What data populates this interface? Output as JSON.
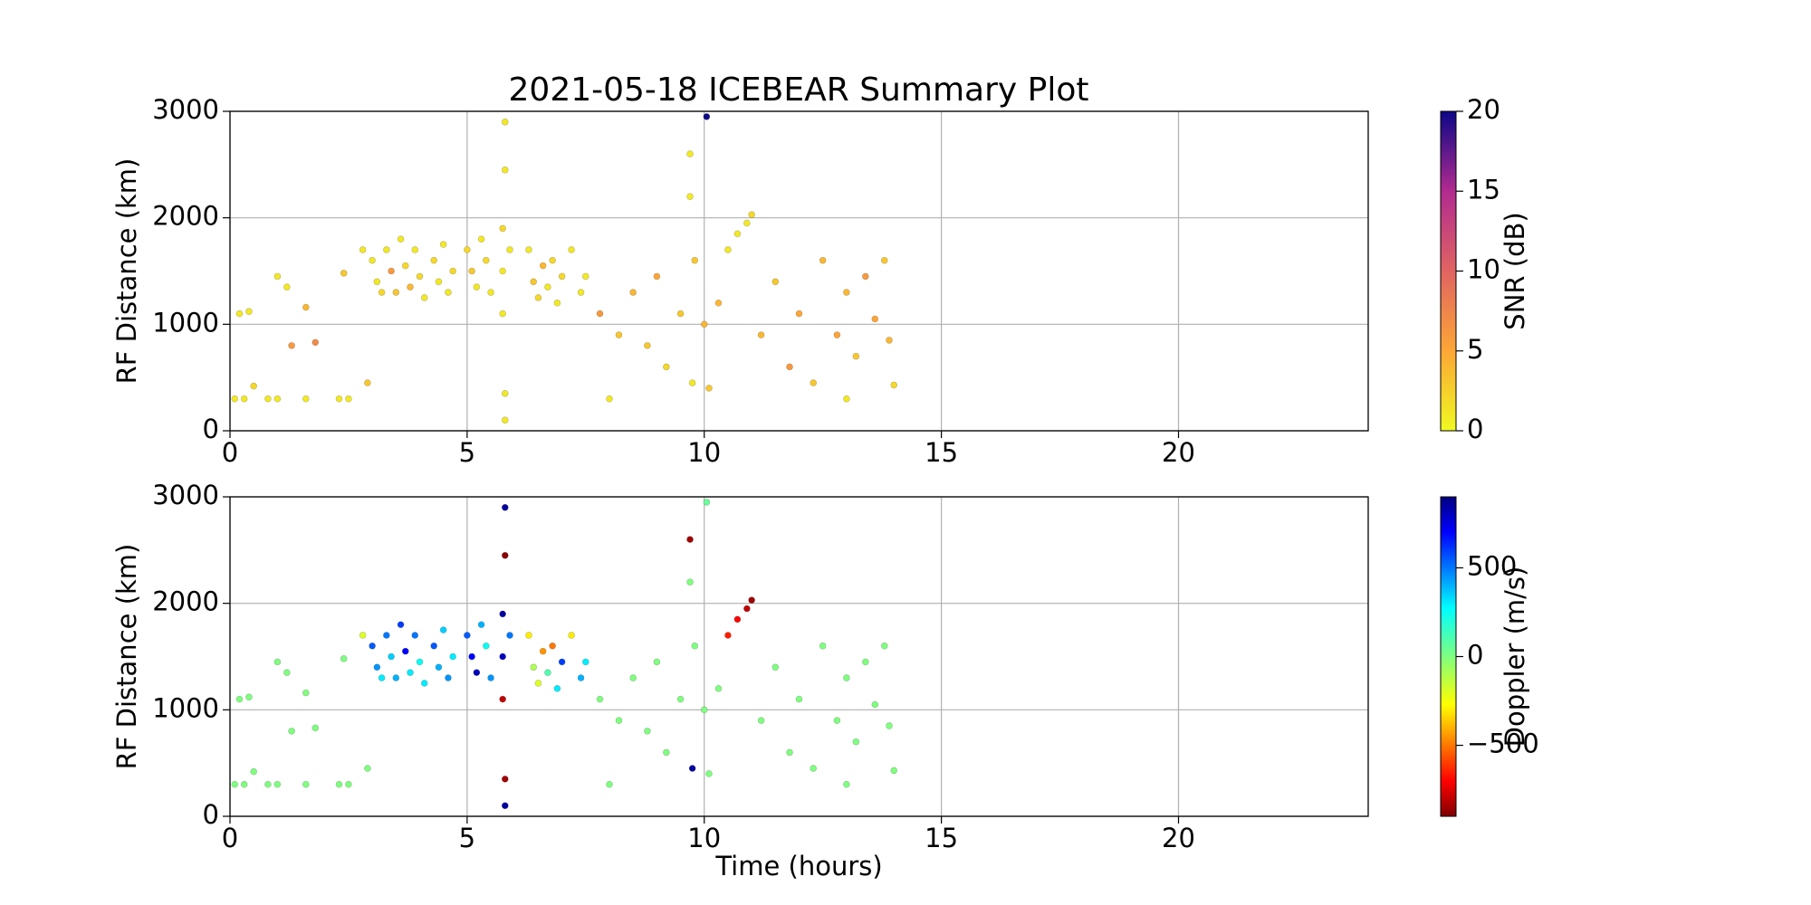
{
  "chart_data": [
    {
      "type": "scatter",
      "title": "2021-05-18 ICEBEAR Summary Plot",
      "ylabel": "RF Distance (km)",
      "xlim": [
        0,
        24
      ],
      "xticks": [
        0,
        5,
        10,
        15,
        20
      ],
      "ylim": [
        0,
        3000
      ],
      "yticks": [
        0,
        1000,
        2000,
        3000
      ],
      "grid": true,
      "colorbar_label": "SNR (dB)",
      "colormap": "plasma_r",
      "clim": [
        0,
        20
      ],
      "cticks": [
        0,
        5,
        10,
        15,
        20
      ],
      "x": [
        0.1,
        0.3,
        0.2,
        0.4,
        0.5,
        0.8,
        1.0,
        1.0,
        1.2,
        1.3,
        1.6,
        1.6,
        1.8,
        2.3,
        2.4,
        2.5,
        2.8,
        2.9,
        3.0,
        3.1,
        3.2,
        3.3,
        3.4,
        3.5,
        3.6,
        3.7,
        3.8,
        3.9,
        4.0,
        4.1,
        4.3,
        4.4,
        4.5,
        4.6,
        4.7,
        5.0,
        5.1,
        5.2,
        5.3,
        5.4,
        5.5,
        5.75,
        5.75,
        5.75,
        5.8,
        5.8,
        5.8,
        5.8,
        5.9,
        6.3,
        6.4,
        6.5,
        6.6,
        6.7,
        6.8,
        6.9,
        7.0,
        7.2,
        7.4,
        7.5,
        7.8,
        8.0,
        8.2,
        8.5,
        8.8,
        9.0,
        9.2,
        9.5,
        9.7,
        9.7,
        9.75,
        9.8,
        10.0,
        10.05,
        10.1,
        10.3,
        10.5,
        10.7,
        10.9,
        11.0,
        11.2,
        11.5,
        11.8,
        12.0,
        12.3,
        12.5,
        12.8,
        13.0,
        13.0,
        13.2,
        13.4,
        13.6,
        13.8,
        13.9,
        14.0
      ],
      "y": [
        300,
        300,
        1100,
        1120,
        420,
        300,
        300,
        1450,
        1350,
        800,
        300,
        1160,
        830,
        300,
        1480,
        300,
        1700,
        450,
        1600,
        1400,
        1300,
        1700,
        1500,
        1300,
        1800,
        1550,
        1350,
        1700,
        1450,
        1250,
        1600,
        1400,
        1750,
        1300,
        1500,
        1700,
        1500,
        1350,
        1800,
        1600,
        1300,
        1900,
        1500,
        1100,
        2900,
        2450,
        350,
        100,
        1700,
        1700,
        1400,
        1250,
        1550,
        1350,
        1600,
        1200,
        1450,
        1700,
        1300,
        1450,
        1100,
        300,
        900,
        1300,
        800,
        1450,
        600,
        1100,
        2600,
        2200,
        450,
        1600,
        1000,
        2950,
        400,
        1200,
        1700,
        1850,
        1950,
        2030,
        900,
        1400,
        600,
        1100,
        450,
        1600,
        900,
        1300,
        300,
        700,
        1450,
        1050,
        1600,
        850,
        430
      ],
      "c": [
        1,
        1,
        1,
        1,
        2,
        1,
        1,
        1,
        1,
        6,
        1,
        4,
        7,
        1,
        3,
        1,
        1,
        3,
        1,
        1,
        2,
        1,
        6,
        3,
        1,
        2,
        4,
        1,
        2,
        1,
        2,
        1,
        1,
        1,
        2,
        2,
        3,
        1,
        1,
        2,
        1,
        2,
        1,
        1,
        1,
        1,
        1,
        1,
        1,
        1,
        3,
        2,
        4,
        1,
        2,
        1,
        2,
        1,
        1,
        1,
        6,
        1,
        3,
        4,
        3,
        5,
        2,
        3,
        1,
        1,
        1,
        3,
        4,
        20,
        3,
        4,
        1,
        1,
        1,
        2,
        4,
        3,
        6,
        5,
        3,
        4,
        5,
        4,
        1,
        3,
        6,
        5,
        3,
        4,
        2
      ]
    },
    {
      "type": "scatter",
      "ylabel": "RF Distance (km)",
      "xlabel": "Time (hours)",
      "xlim": [
        0,
        24
      ],
      "xticks": [
        0,
        5,
        10,
        15,
        20
      ],
      "ylim": [
        0,
        3000
      ],
      "yticks": [
        0,
        1000,
        2000,
        3000
      ],
      "grid": true,
      "colorbar_label": "Doppler (m/s)",
      "colormap": "jet_r",
      "clim": [
        -900,
        900
      ],
      "cticks": [
        {
          "value": -500,
          "label": "−500"
        },
        0,
        500
      ],
      "x": [
        0.1,
        0.3,
        0.2,
        0.4,
        0.5,
        0.8,
        1.0,
        1.0,
        1.2,
        1.3,
        1.6,
        1.6,
        1.8,
        2.3,
        2.4,
        2.5,
        2.8,
        2.9,
        3.0,
        3.1,
        3.2,
        3.3,
        3.4,
        3.5,
        3.6,
        3.7,
        3.8,
        3.9,
        4.0,
        4.1,
        4.3,
        4.4,
        4.5,
        4.6,
        4.7,
        5.0,
        5.1,
        5.2,
        5.3,
        5.4,
        5.5,
        5.75,
        5.75,
        5.75,
        5.8,
        5.8,
        5.8,
        5.8,
        5.9,
        6.3,
        6.4,
        6.5,
        6.6,
        6.7,
        6.8,
        6.9,
        7.0,
        7.2,
        7.4,
        7.5,
        7.8,
        8.0,
        8.2,
        8.5,
        8.8,
        9.0,
        9.2,
        9.5,
        9.7,
        9.7,
        9.75,
        9.8,
        10.0,
        10.05,
        10.1,
        10.3,
        10.5,
        10.7,
        10.9,
        11.0,
        11.2,
        11.5,
        11.8,
        12.0,
        12.3,
        12.5,
        12.8,
        13.0,
        13.0,
        13.2,
        13.4,
        13.6,
        13.8,
        13.9,
        14.0
      ],
      "y": [
        300,
        300,
        1100,
        1120,
        420,
        300,
        300,
        1450,
        1350,
        800,
        300,
        1160,
        830,
        300,
        1480,
        300,
        1700,
        450,
        1600,
        1400,
        1300,
        1700,
        1500,
        1300,
        1800,
        1550,
        1350,
        1700,
        1450,
        1250,
        1600,
        1400,
        1750,
        1300,
        1500,
        1700,
        1500,
        1350,
        1800,
        1600,
        1300,
        1900,
        1500,
        1100,
        2900,
        2450,
        350,
        100,
        1700,
        1700,
        1400,
        1250,
        1550,
        1350,
        1600,
        1200,
        1450,
        1700,
        1300,
        1450,
        1100,
        300,
        900,
        1300,
        800,
        1450,
        600,
        1100,
        2600,
        2200,
        450,
        1600,
        1000,
        2950,
        400,
        1200,
        1700,
        1850,
        1950,
        2030,
        900,
        1400,
        600,
        1100,
        450,
        1600,
        900,
        1300,
        300,
        700,
        1450,
        1050,
        1600,
        850,
        430
      ],
      "c": [
        0,
        0,
        0,
        0,
        0,
        0,
        0,
        0,
        0,
        0,
        0,
        0,
        0,
        0,
        0,
        0,
        -200,
        0,
        550,
        450,
        300,
        500,
        350,
        400,
        600,
        700,
        300,
        500,
        250,
        300,
        550,
        400,
        350,
        450,
        300,
        550,
        700,
        800,
        400,
        250,
        450,
        850,
        800,
        -800,
        850,
        -880,
        -850,
        850,
        500,
        -300,
        -100,
        -200,
        -450,
        100,
        -500,
        300,
        600,
        -300,
        400,
        300,
        0,
        0,
        0,
        0,
        0,
        0,
        0,
        0,
        -850,
        0,
        850,
        0,
        0,
        50,
        0,
        0,
        -650,
        -700,
        -800,
        -850,
        0,
        0,
        0,
        0,
        0,
        0,
        0,
        0,
        0,
        0,
        0,
        0,
        0,
        0,
        0
      ]
    }
  ]
}
